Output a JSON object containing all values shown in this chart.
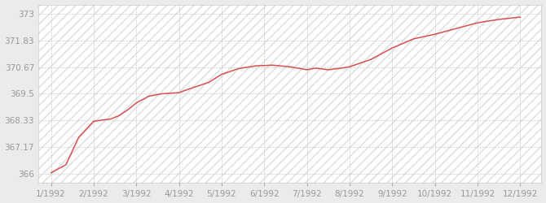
{
  "x_labels": [
    "1/1992",
    "2/1992",
    "3/1992",
    "4/1992",
    "5/1992",
    "6/1992",
    "7/1992",
    "8/1992",
    "9/1992",
    "10/1992",
    "11/1992",
    "12/1992"
  ],
  "x_positions": [
    1,
    2,
    3,
    4,
    5,
    6,
    7,
    8,
    9,
    10,
    11,
    12
  ],
  "y_values": [
    366.05,
    366.4,
    367.6,
    368.3,
    368.35,
    368.4,
    368.55,
    368.8,
    369.1,
    369.4,
    369.5,
    369.55,
    369.75,
    370.0,
    370.35,
    370.6,
    370.72,
    370.75,
    370.68,
    370.55,
    370.62,
    370.55,
    370.62,
    370.68,
    371.0,
    371.5,
    371.9,
    372.1,
    372.35,
    372.6,
    372.75,
    372.85
  ],
  "x_data": [
    1.0,
    1.35,
    1.65,
    2.0,
    2.2,
    2.4,
    2.6,
    2.8,
    3.0,
    3.3,
    3.6,
    4.0,
    4.3,
    4.7,
    5.0,
    5.4,
    5.8,
    6.2,
    6.6,
    7.0,
    7.2,
    7.5,
    7.8,
    8.0,
    8.5,
    9.0,
    9.5,
    10.0,
    10.5,
    11.0,
    11.5,
    12.0
  ],
  "yticks": [
    366,
    367.17,
    368.33,
    369.5,
    370.67,
    371.83,
    373
  ],
  "ytick_labels": [
    "366",
    "367.17",
    "368.33",
    "369.5",
    "370.67",
    "371.83",
    "373"
  ],
  "ylim": [
    365.6,
    373.4
  ],
  "xlim": [
    0.7,
    12.5
  ],
  "line_color": "#d94f4f",
  "bg_color": "#ebebeb",
  "plot_bg_color": "#ffffff",
  "hatch_color": "#dddddd",
  "grid_color": "#cccccc",
  "tick_label_color": "#999999",
  "tick_label_size": 7.5
}
